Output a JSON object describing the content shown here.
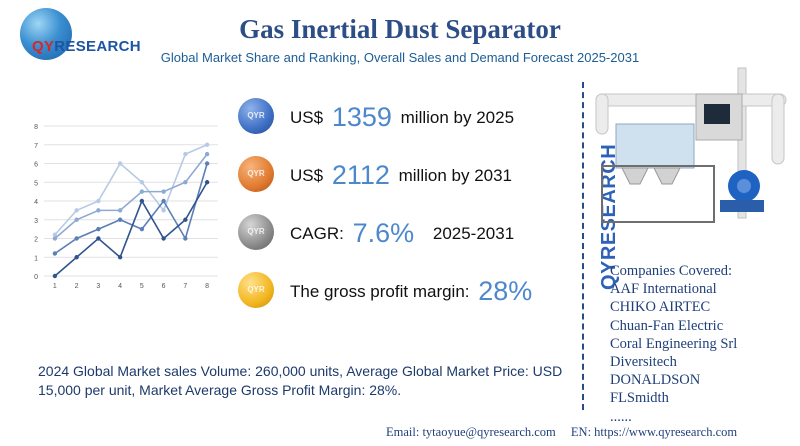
{
  "header": {
    "title": "Gas Inertial Dust Separator",
    "subtitle": "Global Market Share and Ranking, Overall Sales and Demand Forecast 2025-2031",
    "logo_text_qy": "QY",
    "logo_text_rest": "RESEARCH"
  },
  "metrics": [
    {
      "prefix": "US$",
      "value": "1359",
      "suffix": "million by 2025",
      "color": "#3d6fc4"
    },
    {
      "prefix": "US$",
      "value": "2112",
      "suffix": "million by 2031",
      "color": "#e07a2e"
    },
    {
      "prefix": "CAGR:",
      "value": "7.6%",
      "suffix": "2025-2031",
      "color": "#8a8a8a"
    },
    {
      "prefix": "The gross profit margin:",
      "value": "28%",
      "suffix": "",
      "color": "#f2b61f"
    }
  ],
  "side_brand": "QYRESEARCH",
  "companies": {
    "heading": "Companies Covered:",
    "items": [
      "AAF International",
      "CHIKO AIRTEC",
      "Chuan-Fan Electric",
      "Coral Engineering Srl",
      "Diversitech",
      "DONALDSON",
      "FLSmidth",
      "......"
    ]
  },
  "summary": "2024 Global Market sales Volume: 260,000 units, Average Global Market Price: USD 15,000 per unit, Market Average Gross Profit Margin: 28%.",
  "footer": {
    "email": "Email:  tytaoyue@qyresearch.com",
    "web": "EN: https://www.qyresearch.com"
  },
  "chart_data": {
    "type": "line",
    "x": [
      1,
      2,
      3,
      4,
      5,
      6,
      7,
      8
    ],
    "xlim": [
      0.5,
      8.5
    ],
    "ylim": [
      0,
      8
    ],
    "yticks": [
      0,
      1,
      2,
      3,
      4,
      5,
      6,
      7,
      8
    ],
    "grid": "horizontal",
    "series": [
      {
        "values": [
          2.2,
          3.5,
          4.0,
          6.0,
          5.0,
          3.5,
          6.5,
          7.0
        ],
        "color": "#b7c9e6"
      },
      {
        "values": [
          2.0,
          3.0,
          3.5,
          3.5,
          4.5,
          4.5,
          5.0,
          6.5
        ],
        "color": "#8ea9d4"
      },
      {
        "values": [
          1.2,
          2.0,
          2.5,
          3.0,
          2.5,
          4.0,
          2.0,
          6.0
        ],
        "color": "#5b7fb6"
      },
      {
        "values": [
          0.0,
          1.0,
          2.0,
          1.0,
          4.0,
          2.0,
          3.0,
          5.0
        ],
        "color": "#2f548e"
      }
    ]
  }
}
